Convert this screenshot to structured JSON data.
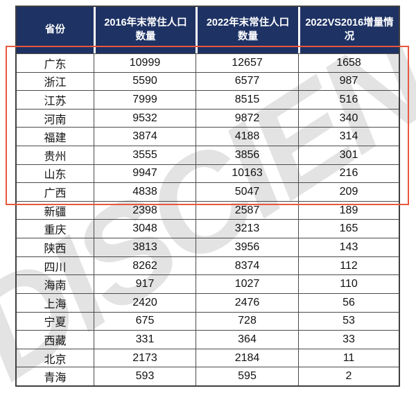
{
  "watermark": {
    "text": "DISCIEN",
    "color": "#e3e3e3"
  },
  "colors": {
    "header_background": "#1e3264",
    "header_text": "#ffffff",
    "grid_line": "#4a4a4a",
    "highlight_border": "#e8573d"
  },
  "highlight": {
    "description": "red rectangle outlining the top 8 provinces by population increment",
    "rows_covered": [
      "广东",
      "浙江",
      "江苏",
      "河南",
      "福建",
      "贵州",
      "山东",
      "广西"
    ]
  },
  "chart_data": {
    "type": "table",
    "columns": [
      "省份",
      "2016年末常住人口数量",
      "2022年末常住人口数量",
      "2022VS2016增量情况"
    ],
    "rows": [
      [
        "广东",
        "10999",
        "12657",
        "1658"
      ],
      [
        "浙江",
        "5590",
        "6577",
        "987"
      ],
      [
        "江苏",
        "7999",
        "8515",
        "516"
      ],
      [
        "河南",
        "9532",
        "9872",
        "340"
      ],
      [
        "福建",
        "3874",
        "4188",
        "314"
      ],
      [
        "贵州",
        "3555",
        "3856",
        "301"
      ],
      [
        "山东",
        "9947",
        "10163",
        "216"
      ],
      [
        "广西",
        "4838",
        "5047",
        "209"
      ],
      [
        "新疆",
        "2398",
        "2587",
        "189"
      ],
      [
        "重庆",
        "3048",
        "3213",
        "165"
      ],
      [
        "陕西",
        "3813",
        "3956",
        "143"
      ],
      [
        "四川",
        "8262",
        "8374",
        "112"
      ],
      [
        "海南",
        "917",
        "1027",
        "110"
      ],
      [
        "上海",
        "2420",
        "2476",
        "56"
      ],
      [
        "宁夏",
        "675",
        "728",
        "53"
      ],
      [
        "西藏",
        "331",
        "364",
        "33"
      ],
      [
        "北京",
        "2173",
        "2184",
        "11"
      ],
      [
        "青海",
        "593",
        "595",
        "2"
      ]
    ]
  }
}
